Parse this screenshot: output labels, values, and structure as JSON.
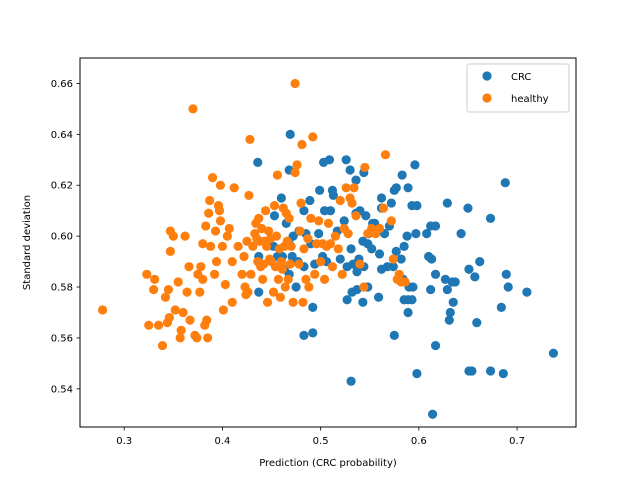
{
  "chart_data": {
    "type": "scatter",
    "title": "",
    "xlabel": "Prediction (CRC probability)",
    "ylabel": "Standard deviation",
    "xlim": [
      0.255,
      0.76
    ],
    "ylim": [
      0.525,
      0.67
    ],
    "xticks": [
      "0.3",
      "0.4",
      "0.5",
      "0.6",
      "0.7"
    ],
    "yticks": [
      "0.54",
      "0.56",
      "0.58",
      "0.60",
      "0.62",
      "0.64",
      "0.66"
    ],
    "legend_position": "top-right",
    "grid": false,
    "series": [
      {
        "name": "CRC",
        "color": "#1f77b4",
        "points": [
          [
            0.436,
            0.629
          ],
          [
            0.469,
            0.64
          ],
          [
            0.468,
            0.626
          ],
          [
            0.503,
            0.629
          ],
          [
            0.509,
            0.63
          ],
          [
            0.526,
            0.63
          ],
          [
            0.53,
            0.626
          ],
          [
            0.536,
            0.622
          ],
          [
            0.544,
            0.625
          ],
          [
            0.596,
            0.628
          ],
          [
            0.583,
            0.624
          ],
          [
            0.575,
            0.618
          ],
          [
            0.572,
            0.613
          ],
          [
            0.562,
            0.615
          ],
          [
            0.562,
            0.611
          ],
          [
            0.593,
            0.612
          ],
          [
            0.598,
            0.612
          ],
          [
            0.589,
            0.619
          ],
          [
            0.577,
            0.619
          ],
          [
            0.629,
            0.613
          ],
          [
            0.65,
            0.611
          ],
          [
            0.688,
            0.621
          ],
          [
            0.673,
            0.607
          ],
          [
            0.643,
            0.601
          ],
          [
            0.612,
            0.604
          ],
          [
            0.617,
            0.604
          ],
          [
            0.608,
            0.601
          ],
          [
            0.597,
            0.601
          ],
          [
            0.588,
            0.6
          ],
          [
            0.585,
            0.596
          ],
          [
            0.582,
            0.591
          ],
          [
            0.577,
            0.594
          ],
          [
            0.581,
            0.583
          ],
          [
            0.584,
            0.583
          ],
          [
            0.574,
            0.588
          ],
          [
            0.568,
            0.588
          ],
          [
            0.562,
            0.587
          ],
          [
            0.559,
            0.576
          ],
          [
            0.585,
            0.575
          ],
          [
            0.589,
            0.575
          ],
          [
            0.593,
            0.575
          ],
          [
            0.589,
            0.57
          ],
          [
            0.59,
            0.58
          ],
          [
            0.594,
            0.58
          ],
          [
            0.612,
            0.579
          ],
          [
            0.617,
            0.585
          ],
          [
            0.613,
            0.591
          ],
          [
            0.61,
            0.592
          ],
          [
            0.627,
            0.583
          ],
          [
            0.637,
            0.582
          ],
          [
            0.634,
            0.582
          ],
          [
            0.629,
            0.579
          ],
          [
            0.632,
            0.57
          ],
          [
            0.635,
            0.574
          ],
          [
            0.631,
            0.567
          ],
          [
            0.651,
            0.587
          ],
          [
            0.657,
            0.584
          ],
          [
            0.662,
            0.59
          ],
          [
            0.689,
            0.585
          ],
          [
            0.691,
            0.58
          ],
          [
            0.71,
            0.578
          ],
          [
            0.684,
            0.572
          ],
          [
            0.659,
            0.566
          ],
          [
            0.617,
            0.557
          ],
          [
            0.575,
            0.561
          ],
          [
            0.598,
            0.546
          ],
          [
            0.651,
            0.547
          ],
          [
            0.654,
            0.547
          ],
          [
            0.673,
            0.547
          ],
          [
            0.686,
            0.546
          ],
          [
            0.737,
            0.554
          ],
          [
            0.614,
            0.53
          ],
          [
            0.531,
            0.543
          ],
          [
            0.483,
            0.561
          ],
          [
            0.492,
            0.562
          ],
          [
            0.492,
            0.572
          ],
          [
            0.532,
            0.578
          ],
          [
            0.537,
            0.579
          ],
          [
            0.527,
            0.575
          ],
          [
            0.543,
            0.574
          ],
          [
            0.548,
            0.58
          ],
          [
            0.537,
            0.586
          ],
          [
            0.544,
            0.588
          ],
          [
            0.539,
            0.591
          ],
          [
            0.552,
            0.595
          ],
          [
            0.548,
            0.597
          ],
          [
            0.543,
            0.598
          ],
          [
            0.549,
            0.601
          ],
          [
            0.553,
            0.605
          ],
          [
            0.555,
            0.605
          ],
          [
            0.546,
            0.608
          ],
          [
            0.536,
            0.609
          ],
          [
            0.54,
            0.61
          ],
          [
            0.524,
            0.606
          ],
          [
            0.517,
            0.602
          ],
          [
            0.51,
            0.61
          ],
          [
            0.504,
            0.61
          ],
          [
            0.513,
            0.616
          ],
          [
            0.512,
            0.618
          ],
          [
            0.499,
            0.618
          ],
          [
            0.489,
            0.614
          ],
          [
            0.483,
            0.61
          ],
          [
            0.478,
            0.602
          ],
          [
            0.485,
            0.601
          ],
          [
            0.49,
            0.597
          ],
          [
            0.498,
            0.601
          ],
          [
            0.502,
            0.592
          ],
          [
            0.506,
            0.59
          ],
          [
            0.494,
            0.589
          ],
          [
            0.483,
            0.588
          ],
          [
            0.477,
            0.59
          ],
          [
            0.471,
            0.592
          ],
          [
            0.468,
            0.585
          ],
          [
            0.475,
            0.58
          ],
          [
            0.468,
            0.597
          ],
          [
            0.472,
            0.6
          ],
          [
            0.465,
            0.605
          ],
          [
            0.46,
            0.615
          ],
          [
            0.453,
            0.608
          ],
          [
            0.452,
            0.596
          ],
          [
            0.456,
            0.592
          ],
          [
            0.461,
            0.592
          ],
          [
            0.463,
            0.587
          ],
          [
            0.437,
            0.578
          ],
          [
            0.437,
            0.592
          ],
          [
            0.52,
            0.591
          ],
          [
            0.527,
            0.588
          ],
          [
            0.531,
            0.595
          ],
          [
            0.533,
            0.589
          ],
          [
            0.56,
            0.593
          ],
          [
            0.565,
            0.601
          ],
          [
            0.57,
            0.604
          ]
        ]
      },
      {
        "name": "healthy",
        "color": "#ff7f0e",
        "points": [
          [
            0.278,
            0.571
          ],
          [
            0.323,
            0.585
          ],
          [
            0.325,
            0.565
          ],
          [
            0.33,
            0.579
          ],
          [
            0.331,
            0.583
          ],
          [
            0.335,
            0.565
          ],
          [
            0.339,
            0.557
          ],
          [
            0.342,
            0.576
          ],
          [
            0.344,
            0.566
          ],
          [
            0.345,
            0.579
          ],
          [
            0.346,
            0.568
          ],
          [
            0.347,
            0.594
          ],
          [
            0.347,
            0.602
          ],
          [
            0.35,
            0.6
          ],
          [
            0.352,
            0.571
          ],
          [
            0.355,
            0.582
          ],
          [
            0.357,
            0.56
          ],
          [
            0.358,
            0.563
          ],
          [
            0.36,
            0.57
          ],
          [
            0.362,
            0.6
          ],
          [
            0.364,
            0.578
          ],
          [
            0.366,
            0.588
          ],
          [
            0.367,
            0.567
          ],
          [
            0.37,
            0.65
          ],
          [
            0.372,
            0.561
          ],
          [
            0.374,
            0.56
          ],
          [
            0.375,
            0.585
          ],
          [
            0.377,
            0.578
          ],
          [
            0.378,
            0.588
          ],
          [
            0.38,
            0.583
          ],
          [
            0.38,
            0.597
          ],
          [
            0.382,
            0.565
          ],
          [
            0.383,
            0.604
          ],
          [
            0.384,
            0.567
          ],
          [
            0.385,
            0.56
          ],
          [
            0.386,
            0.609
          ],
          [
            0.387,
            0.614
          ],
          [
            0.388,
            0.596
          ],
          [
            0.39,
            0.623
          ],
          [
            0.392,
            0.585
          ],
          [
            0.393,
            0.602
          ],
          [
            0.394,
            0.59
          ],
          [
            0.396,
            0.612
          ],
          [
            0.397,
            0.61
          ],
          [
            0.398,
            0.606
          ],
          [
            0.398,
            0.62
          ],
          [
            0.4,
            0.596
          ],
          [
            0.401,
            0.571
          ],
          [
            0.403,
            0.581
          ],
          [
            0.405,
            0.6
          ],
          [
            0.407,
            0.603
          ],
          [
            0.41,
            0.59
          ],
          [
            0.41,
            0.574
          ],
          [
            0.412,
            0.619
          ],
          [
            0.416,
            0.596
          ],
          [
            0.42,
            0.585
          ],
          [
            0.422,
            0.592
          ],
          [
            0.423,
            0.58
          ],
          [
            0.424,
            0.577
          ],
          [
            0.425,
            0.598
          ],
          [
            0.426,
            0.578
          ],
          [
            0.427,
            0.616
          ],
          [
            0.428,
            0.638
          ],
          [
            0.429,
            0.585
          ],
          [
            0.431,
            0.596
          ],
          [
            0.433,
            0.601
          ],
          [
            0.434,
            0.605
          ],
          [
            0.435,
            0.599
          ],
          [
            0.436,
            0.59
          ],
          [
            0.437,
            0.607
          ],
          [
            0.438,
            0.598
          ],
          [
            0.439,
            0.588
          ],
          [
            0.44,
            0.603
          ],
          [
            0.441,
            0.583
          ],
          [
            0.442,
            0.589
          ],
          [
            0.443,
            0.598
          ],
          [
            0.444,
            0.61
          ],
          [
            0.445,
            0.596
          ],
          [
            0.446,
            0.574
          ],
          [
            0.447,
            0.602
          ],
          [
            0.448,
            0.591
          ],
          [
            0.449,
            0.599
          ],
          [
            0.45,
            0.59
          ],
          [
            0.452,
            0.578
          ],
          [
            0.453,
            0.612
          ],
          [
            0.454,
            0.588
          ],
          [
            0.455,
            0.6
          ],
          [
            0.456,
            0.624
          ],
          [
            0.457,
            0.583
          ],
          [
            0.458,
            0.595
          ],
          [
            0.459,
            0.576
          ],
          [
            0.46,
            0.59
          ],
          [
            0.461,
            0.587
          ],
          [
            0.462,
            0.611
          ],
          [
            0.463,
            0.596
          ],
          [
            0.464,
            0.58
          ],
          [
            0.465,
            0.609
          ],
          [
            0.466,
            0.598
          ],
          [
            0.467,
            0.583
          ],
          [
            0.468,
            0.607
          ],
          [
            0.469,
            0.589
          ],
          [
            0.47,
            0.596
          ],
          [
            0.472,
            0.574
          ],
          [
            0.474,
            0.625
          ],
          [
            0.474,
            0.66
          ],
          [
            0.476,
            0.628
          ],
          [
            0.478,
            0.589
          ],
          [
            0.479,
            0.602
          ],
          [
            0.48,
            0.613
          ],
          [
            0.481,
            0.636
          ],
          [
            0.482,
            0.574
          ],
          [
            0.483,
            0.595
          ],
          [
            0.485,
            0.583
          ],
          [
            0.487,
            0.599
          ],
          [
            0.488,
            0.58
          ],
          [
            0.49,
            0.607
          ],
          [
            0.492,
            0.639
          ],
          [
            0.494,
            0.585
          ],
          [
            0.496,
            0.597
          ],
          [
            0.498,
            0.606
          ],
          [
            0.5,
            0.59
          ],
          [
            0.502,
            0.597
          ],
          [
            0.504,
            0.583
          ],
          [
            0.506,
            0.596
          ],
          [
            0.508,
            0.605
          ],
          [
            0.51,
            0.597
          ],
          [
            0.512,
            0.588
          ],
          [
            0.515,
            0.6
          ],
          [
            0.518,
            0.595
          ],
          [
            0.52,
            0.614
          ],
          [
            0.522,
            0.585
          ],
          [
            0.524,
            0.603
          ],
          [
            0.526,
            0.619
          ],
          [
            0.528,
            0.601
          ],
          [
            0.53,
            0.615
          ],
          [
            0.532,
            0.613
          ],
          [
            0.534,
            0.619
          ],
          [
            0.536,
            0.608
          ],
          [
            0.54,
            0.589
          ],
          [
            0.544,
            0.58
          ],
          [
            0.545,
            0.627
          ],
          [
            0.548,
            0.601
          ],
          [
            0.552,
            0.603
          ],
          [
            0.556,
            0.601
          ],
          [
            0.56,
            0.603
          ],
          [
            0.564,
            0.611
          ],
          [
            0.566,
            0.632
          ],
          [
            0.572,
            0.606
          ],
          [
            0.574,
            0.591
          ],
          [
            0.578,
            0.583
          ],
          [
            0.58,
            0.585
          ],
          [
            0.582,
            0.582
          ],
          [
            0.586,
            0.582
          ]
        ]
      }
    ]
  }
}
